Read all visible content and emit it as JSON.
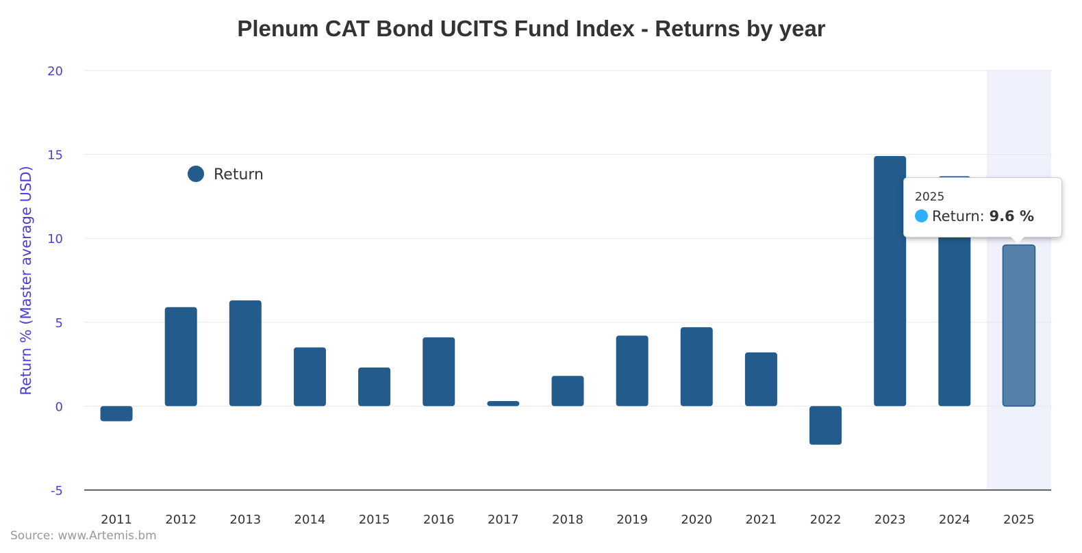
{
  "chart_data": {
    "type": "bar",
    "title": "Plenum CAT Bond UCITS Fund Index - Returns by year",
    "xlabel": "",
    "ylabel": "Return % (Master average USD)",
    "ylim": [
      -5,
      20
    ],
    "yticks": [
      "-5",
      "0",
      "5",
      "10",
      "15",
      "20"
    ],
    "grid": true,
    "legend": {
      "position": "top-left",
      "entries": [
        "Return"
      ]
    },
    "categories": [
      "2011",
      "2012",
      "2013",
      "2014",
      "2015",
      "2016",
      "2017",
      "2018",
      "2019",
      "2020",
      "2021",
      "2022",
      "2023",
      "2024",
      "2025"
    ],
    "series": [
      {
        "name": "Return",
        "values": [
          -0.9,
          5.9,
          6.3,
          3.5,
          2.3,
          4.1,
          0.3,
          1.8,
          4.2,
          4.7,
          3.2,
          -2.3,
          14.9,
          13.7,
          9.6
        ]
      }
    ],
    "highlighted_category": "2025",
    "colors": {
      "bar": "#235b8c",
      "bar_hover": "#5482a8",
      "axis_text": "#4a3fd1",
      "highlight_band": "#eff1fd"
    },
    "source": "Source: www.Artemis.bm"
  },
  "tooltip": {
    "category": "2025",
    "series_label": "Return:",
    "value": "9.6 %"
  }
}
